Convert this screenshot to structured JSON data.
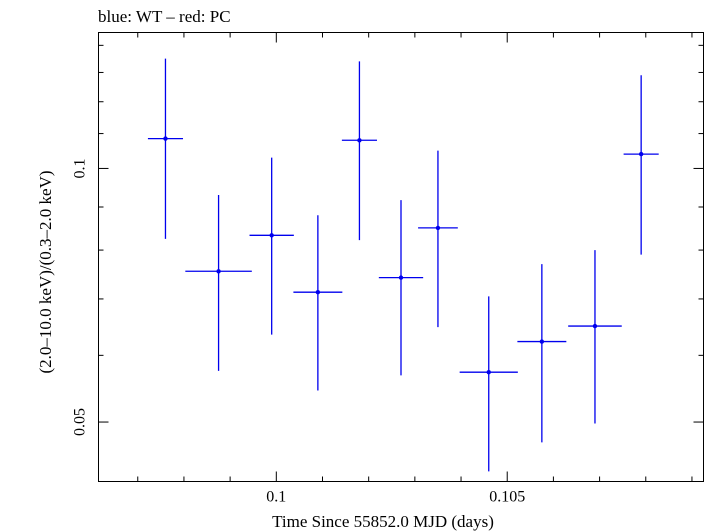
{
  "chart_data": {
    "type": "scatter",
    "title": "blue: WT – red: PC",
    "xlabel": "Time Since 55852.0 MJD (days)",
    "ylabel": "(2.0–10.0 keV)/(0.3–2.0 keV)",
    "xlim": [
      0.09615,
      0.10925
    ],
    "ylim": [
      0.0425,
      0.145
    ],
    "yscale": "log",
    "xticks": [
      {
        "value": 0.1,
        "label": "0.1"
      },
      {
        "value": 0.105,
        "label": "0.105"
      }
    ],
    "yticks": [
      {
        "value": 0.05,
        "label": "0.05"
      },
      {
        "value": 0.1,
        "label": "0.1"
      }
    ],
    "grid": false,
    "series": [
      {
        "color": "#0000ee",
        "points": [
          {
            "x": 0.0976,
            "xerr": 0.00038,
            "y": 0.1085,
            "ylo": 0.0825,
            "yhi": 0.135
          },
          {
            "x": 0.09875,
            "xerr": 0.00072,
            "y": 0.0755,
            "ylo": 0.0575,
            "yhi": 0.093
          },
          {
            "x": 0.0999,
            "xerr": 0.00048,
            "y": 0.0833,
            "ylo": 0.0635,
            "yhi": 0.103
          },
          {
            "x": 0.1009,
            "xerr": 0.00053,
            "y": 0.0713,
            "ylo": 0.0545,
            "yhi": 0.088
          },
          {
            "x": 0.1018,
            "xerr": 0.00038,
            "y": 0.108,
            "ylo": 0.0822,
            "yhi": 0.134
          },
          {
            "x": 0.1027,
            "xerr": 0.00048,
            "y": 0.0742,
            "ylo": 0.0568,
            "yhi": 0.0917
          },
          {
            "x": 0.1035,
            "xerr": 0.00043,
            "y": 0.085,
            "ylo": 0.0648,
            "yhi": 0.105
          },
          {
            "x": 0.1046,
            "xerr": 0.00063,
            "y": 0.0573,
            "ylo": 0.0437,
            "yhi": 0.0705
          },
          {
            "x": 0.10575,
            "xerr": 0.00053,
            "y": 0.0623,
            "ylo": 0.0473,
            "yhi": 0.077
          },
          {
            "x": 0.1069,
            "xerr": 0.00058,
            "y": 0.065,
            "ylo": 0.0498,
            "yhi": 0.08
          },
          {
            "x": 0.1079,
            "xerr": 0.00038,
            "y": 0.104,
            "ylo": 0.079,
            "yhi": 0.129
          }
        ]
      }
    ]
  }
}
